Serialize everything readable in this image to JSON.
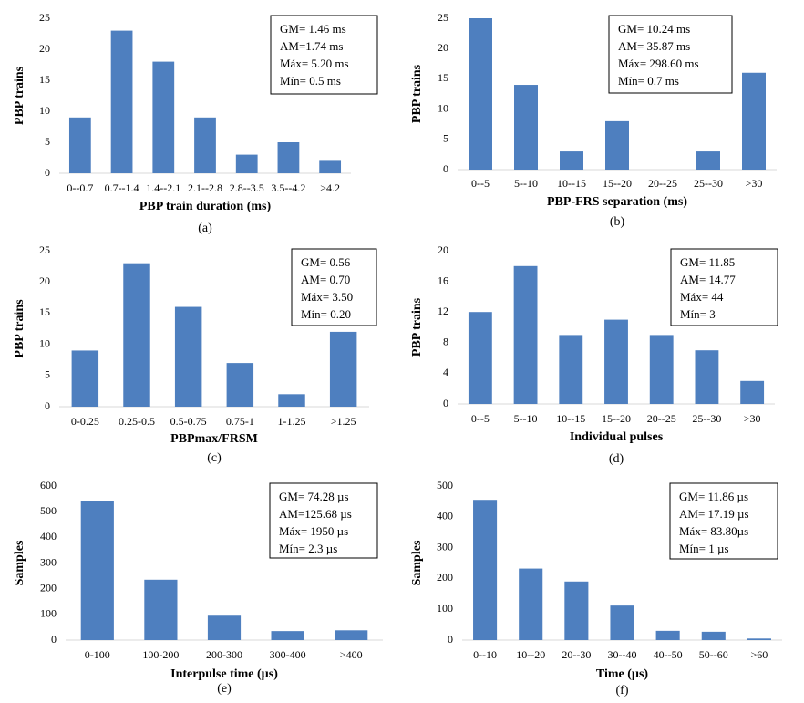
{
  "chart_data": [
    {
      "type": "bar",
      "caption": "(a)",
      "x_label": "PBP train duration (ms)",
      "y_label": "PBP trains",
      "color": "#4e7fbf",
      "categories": [
        "0--0.7",
        "0.7--1.4",
        "1.4--2.1",
        "2.1--2.8",
        "2.8--3.5",
        "3.5--4.2",
        ">4.2"
      ],
      "values": [
        9,
        23,
        18,
        9,
        3,
        5,
        2
      ],
      "ylim": [
        0,
        25
      ],
      "yticks": [
        0,
        5,
        10,
        15,
        20,
        25
      ],
      "annotations": [
        "GM= 1.46 ms",
        "AM=1.74 ms",
        "Máx= 5.20 ms",
        "Mín= 0.5 ms"
      ]
    },
    {
      "type": "bar",
      "caption": "(b)",
      "x_label": "PBP-FRS separation (ms)",
      "y_label": "PBP trains",
      "color": "#4e7fbf",
      "categories": [
        "0--5",
        "5--10",
        "10--15",
        "15--20",
        "20--25",
        "25--30",
        ">30"
      ],
      "values": [
        25,
        14,
        3,
        8,
        0,
        3,
        16
      ],
      "ylim": [
        0,
        25
      ],
      "yticks": [
        0,
        5,
        10,
        15,
        20,
        25
      ],
      "annotations": [
        "GM= 10.24 ms",
        "AM= 35.87 ms",
        "Máx= 298.60 ms",
        "Mín= 0.7 ms"
      ]
    },
    {
      "type": "bar",
      "caption": "(c)",
      "x_label": "PBPmax/FRSM",
      "y_label": "PBP trains",
      "color": "#4e7fbf",
      "categories": [
        "0-0.25",
        "0.25-0.5",
        "0.5-0.75",
        "0.75-1",
        "1-1.25",
        ">1.25"
      ],
      "values": [
        9,
        23,
        16,
        7,
        2,
        12
      ],
      "ylim": [
        0,
        25
      ],
      "yticks": [
        0,
        5,
        10,
        15,
        20,
        25
      ],
      "annotations": [
        "GM= 0.56",
        "AM= 0.70",
        "Máx= 3.50",
        "Mín= 0.20"
      ]
    },
    {
      "type": "bar",
      "caption": "(d)",
      "x_label": "Individual pulses",
      "y_label": "PBP trains",
      "color": "#4e7fbf",
      "categories": [
        "0--5",
        "5--10",
        "10--15",
        "15--20",
        "20--25",
        "25--30",
        ">30"
      ],
      "values": [
        12,
        18,
        9,
        11,
        9,
        7,
        3
      ],
      "ylim": [
        0,
        20
      ],
      "yticks": [
        0,
        4,
        8,
        12,
        16,
        20
      ],
      "annotations": [
        "GM= 11.85",
        "AM= 14.77",
        "Máx= 44",
        "Mín= 3"
      ]
    },
    {
      "type": "bar",
      "caption": "(e)",
      "x_label": "Interpulse time (µs)",
      "y_label": "Samples",
      "color": "#4e7fbf",
      "categories": [
        "0-100",
        "100-200",
        "200-300",
        "300-400",
        ">400"
      ],
      "values": [
        540,
        235,
        95,
        35,
        38
      ],
      "ylim": [
        0,
        600
      ],
      "yticks": [
        0,
        100,
        200,
        300,
        400,
        500,
        600
      ],
      "annotations": [
        "GM= 74.28 µs",
        "AM=125.68 µs",
        "Máx= 1950 µs",
        "Mín= 2.3 µs"
      ]
    },
    {
      "type": "bar",
      "caption": "(f)",
      "x_label": "Time (µs)",
      "y_label": "Samples",
      "color": "#4e7fbf",
      "categories": [
        "0--10",
        "10--20",
        "20--30",
        "30--40",
        "40--50",
        "50--60",
        ">60"
      ],
      "values": [
        455,
        232,
        190,
        112,
        30,
        27,
        5
      ],
      "ylim": [
        0,
        500
      ],
      "yticks": [
        0,
        100,
        200,
        300,
        400,
        500
      ],
      "annotations": [
        "GM= 11.86 µs",
        "AM= 17.19 µs",
        "Máx= 83.80µs",
        "Mín= 1 µs"
      ]
    }
  ]
}
